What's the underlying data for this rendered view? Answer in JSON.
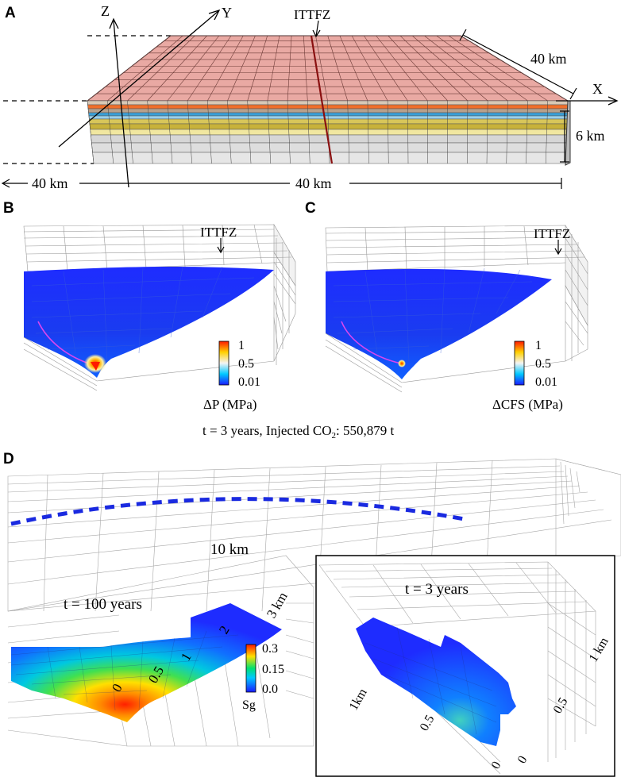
{
  "panel_a": {
    "letter": "A",
    "axis_z": "Z",
    "axis_y": "Y",
    "axis_x": "X",
    "fault": "ITTFZ",
    "dim_depth": "40 km",
    "dim_height": "6 km",
    "dim_left": "40 km",
    "dim_bottom": "40 km",
    "colors": {
      "top": "#e9a9a3",
      "layers": [
        "#d8c8b6",
        "#ef6f2b",
        "#b7a08c",
        "#3aa0d8",
        "#9ad0ea",
        "#d8c65a",
        "#c8b23a",
        "#f1e7a0",
        "#d6d6d6",
        "#dedede",
        "#e6e6e6"
      ]
    }
  },
  "panel_b": {
    "letter": "B",
    "fault": "ITTFZ",
    "legend": {
      "max": "1",
      "mid": "0.5",
      "min": "0.01"
    },
    "unit": "ΔP (MPa)"
  },
  "panel_c": {
    "letter": "C",
    "fault": "ITTFZ",
    "legend": {
      "max": "1",
      "mid": "0.5",
      "min": "0.01"
    },
    "unit": "ΔCFS (MPa)"
  },
  "caption_bc": "t = 3 years, Injected CO",
  "caption_bc_sub": "2",
  "caption_bc_rest": ":  550,879 t",
  "panel_d": {
    "letter": "D",
    "distance": "10 km",
    "time_main": "t = 100 years",
    "ticks": [
      "0",
      "0.5",
      "1",
      "2",
      "3 km"
    ],
    "legend": {
      "max": "0.3",
      "mid": "0.15",
      "min": "0.0"
    },
    "unit": "Sg",
    "inset": {
      "time": "t = 3 years",
      "ticks_left": [
        "1km",
        "0.5",
        "0"
      ],
      "ticks_right": [
        "0",
        "0.5",
        "1 km"
      ]
    }
  }
}
